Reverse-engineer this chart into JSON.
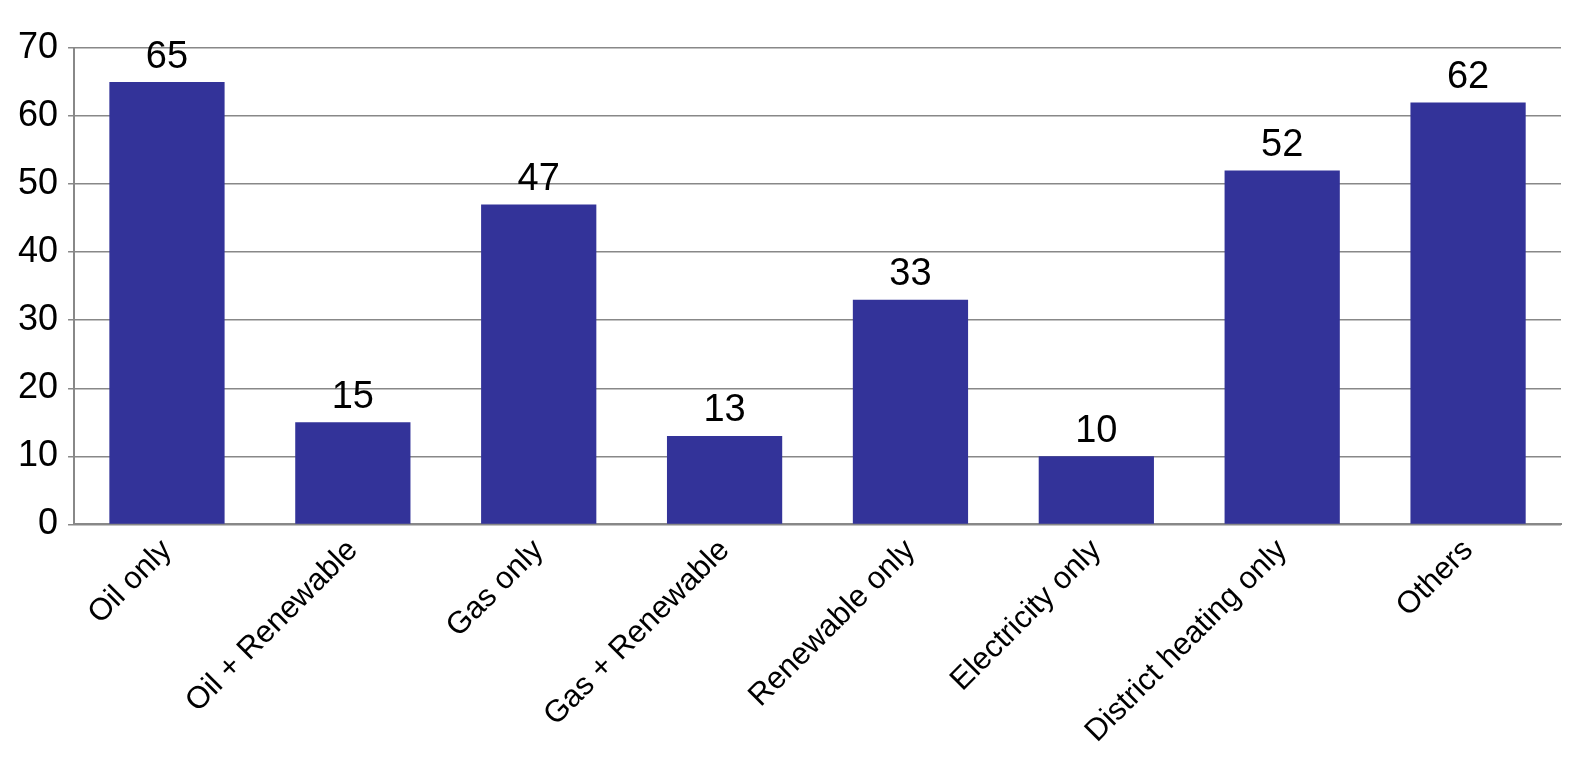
{
  "chart_data": {
    "type": "bar",
    "categories": [
      "Oil only",
      "Oil + Renewable",
      "Gas only",
      "Gas + Renewable",
      "Renewable only",
      "Electricity only",
      "District heating only",
      "Others"
    ],
    "values": [
      65,
      15,
      47,
      13,
      33,
      10,
      52,
      62
    ],
    "color": "#333399",
    "ylim": [
      0,
      70
    ],
    "yticks": [
      0,
      10,
      20,
      30,
      40,
      50,
      60,
      70
    ],
    "grid": "y",
    "data_labels": true,
    "legend": false
  }
}
